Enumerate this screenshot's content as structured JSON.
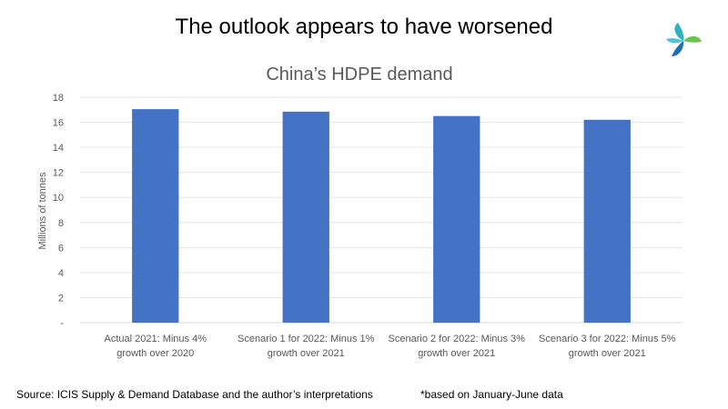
{
  "slide": {
    "title": "The outlook appears to have worsened",
    "source": "Source: ICIS Supply & Demand Database and the author’s interpretations",
    "note": "*based on January-June data"
  },
  "logo": {
    "icon": "icis-logo-icon",
    "colors": [
      "#2bb3c0",
      "#6cc24a",
      "#1d6fb8"
    ]
  },
  "chart_data": {
    "type": "bar",
    "title": "China’s HDPE demand",
    "ylabel": "Millions of tonnes",
    "xlabel": "",
    "ylim": [
      0,
      18
    ],
    "yticks": [
      0,
      2,
      4,
      6,
      8,
      10,
      12,
      14,
      16,
      18
    ],
    "ytick_labels": [
      "-",
      "2",
      "4",
      "6",
      "8",
      "10",
      "12",
      "14",
      "16",
      "18"
    ],
    "grid": true,
    "legend": "none",
    "bar_color": "#4472c4",
    "categories": [
      [
        "Actual 2021: Minus 4%",
        "growth over 2020"
      ],
      [
        "Scenario 1 for 2022: Minus 1%",
        "growth over 2021"
      ],
      [
        "Scenario 2 for 2022: Minus 3%",
        "growth over 2021"
      ],
      [
        "Scenario 3 for 2022: Minus 5%",
        "growth over 2021"
      ]
    ],
    "values": [
      17.05,
      16.85,
      16.5,
      16.2
    ]
  }
}
